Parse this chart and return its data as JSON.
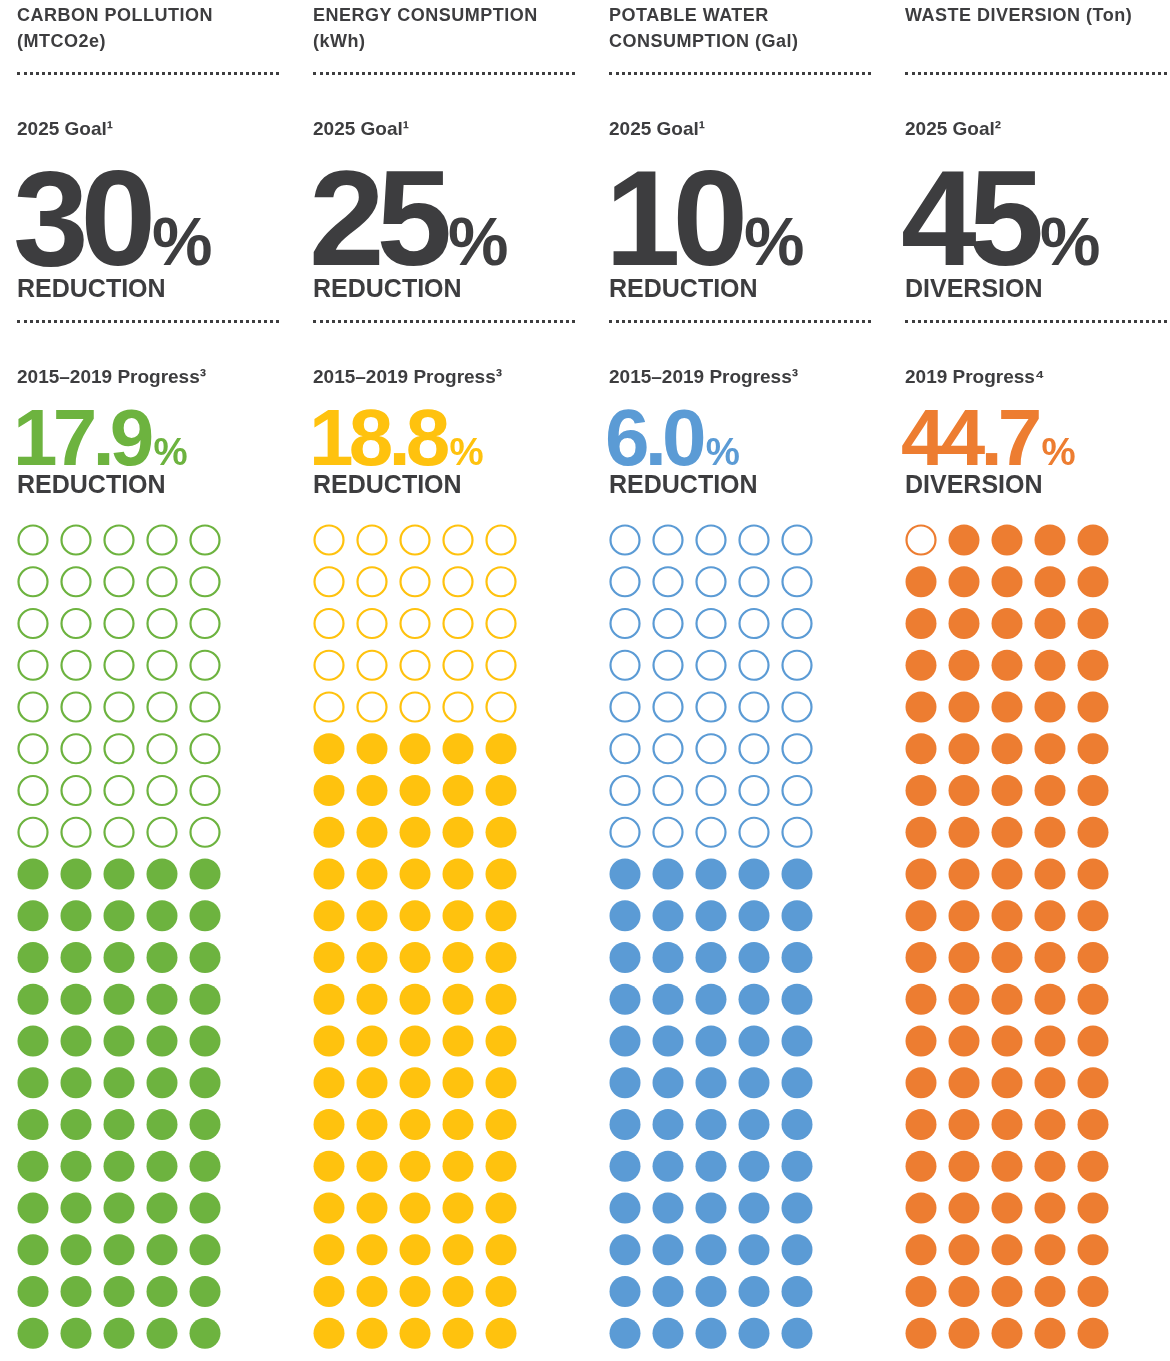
{
  "chart_data": [
    {
      "type": "other",
      "title": "CARBON POLLUTION (MTCO2e)",
      "categories": [
        "2025 Goal¹",
        "2015–2019 Progress³"
      ],
      "values": [
        30,
        17.9
      ],
      "value_labels": [
        "30%",
        "17.9%"
      ],
      "annotations": [
        "REDUCTION",
        "REDUCTION"
      ],
      "colors": [
        "#3d3d3f",
        "#6db33f"
      ]
    },
    {
      "type": "other",
      "title": "ENERGY CONSUMPTION (kWh)",
      "categories": [
        "2025 Goal¹",
        "2015–2019 Progress³"
      ],
      "values": [
        25,
        18.8
      ],
      "value_labels": [
        "25%",
        "18.8%"
      ],
      "annotations": [
        "REDUCTION",
        "REDUCTION"
      ],
      "colors": [
        "#3d3d3f",
        "#ffc20e"
      ]
    },
    {
      "type": "other",
      "title": "POTABLE WATER CONSUMPTION (Gal)",
      "categories": [
        "2025 Goal¹",
        "2015–2019 Progress³"
      ],
      "values": [
        10,
        6.0
      ],
      "value_labels": [
        "10%",
        "6.0%"
      ],
      "annotations": [
        "REDUCTION",
        "REDUCTION"
      ],
      "colors": [
        "#3d3d3f",
        "#5b9bd5"
      ]
    },
    {
      "type": "other",
      "title": "WASTE DIVERSION (Ton)",
      "categories": [
        "2025 Goal²",
        "2019 Progress⁴"
      ],
      "values": [
        45,
        44.7
      ],
      "value_labels": [
        "45%",
        "44.7%"
      ],
      "annotations": [
        "DIVERSION",
        "DIVERSION"
      ],
      "colors": [
        "#3d3d3f",
        "#ed7d31"
      ]
    }
  ]
}
